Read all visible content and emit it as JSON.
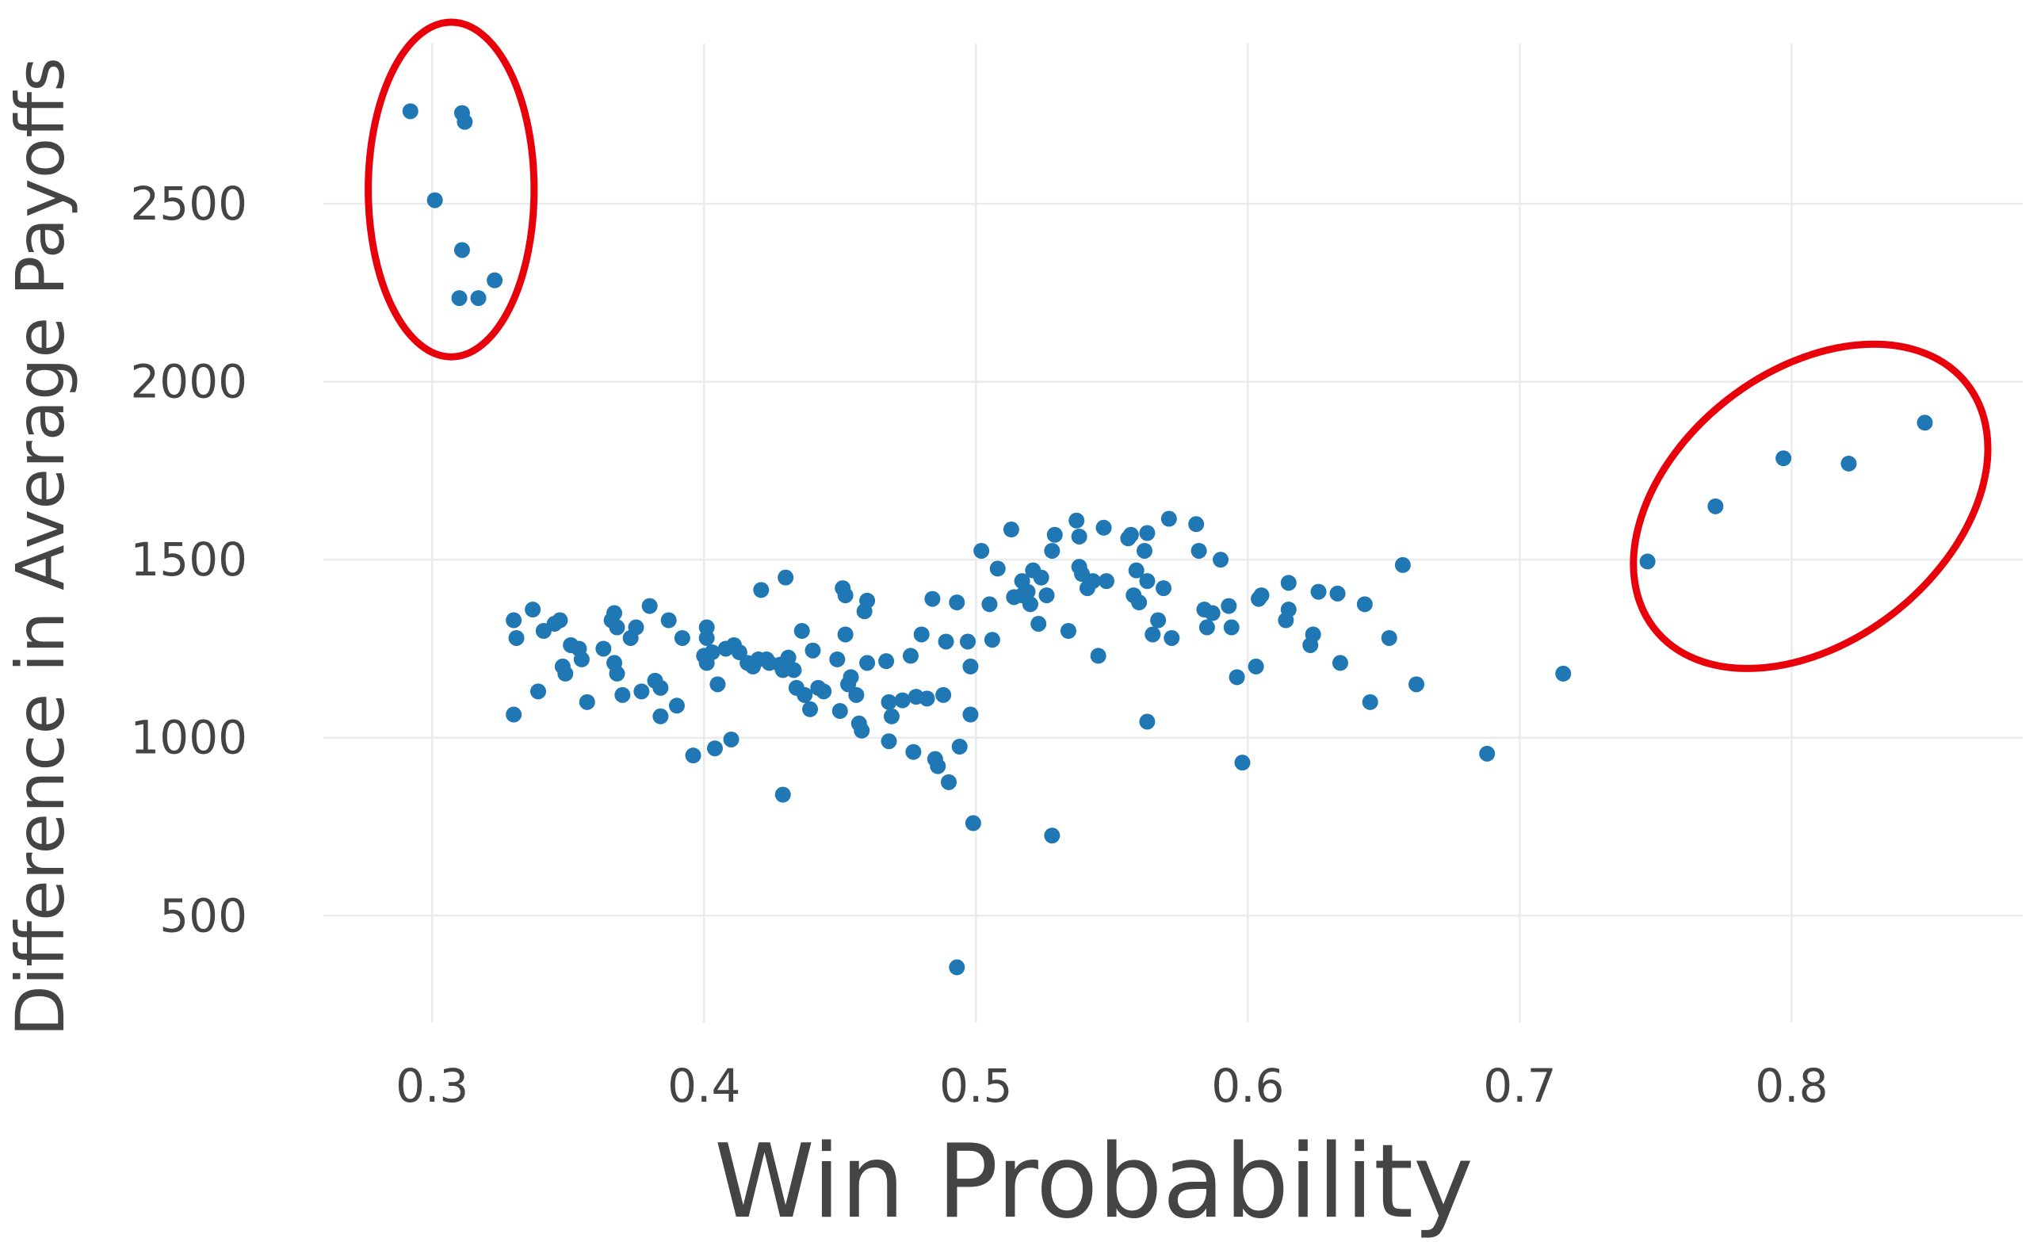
{
  "chart_data": {
    "type": "scatter",
    "title": "",
    "xlabel": "Win Probability",
    "ylabel": "Difference in Average Payoffs",
    "xlim": [
      0.26,
      0.885
    ],
    "ylim": [
      200,
      2950
    ],
    "x_ticks": [
      0.3,
      0.4,
      0.5,
      0.6,
      0.7,
      0.8
    ],
    "y_ticks": [
      500,
      1000,
      1500,
      2000,
      2500
    ],
    "x_tick_labels": [
      "0.3",
      "0.4",
      "0.5",
      "0.6",
      "0.7",
      "0.8"
    ],
    "y_tick_labels": [
      "500",
      "1000",
      "1500",
      "2000",
      "2500"
    ],
    "grid": true,
    "point_color": "#1f77b4",
    "annotation_color": "#e8000b",
    "annotations": [
      {
        "type": "ellipse",
        "cx": 0.307,
        "cy": 2540,
        "rx": 0.0305,
        "ry": 470
      },
      {
        "type": "ellipse",
        "cx": 0.807,
        "cy": 1650,
        "rx": 0.073,
        "ry": 380,
        "rotation": -38
      }
    ],
    "points": [
      [
        0.292,
        2760
      ],
      [
        0.311,
        2755
      ],
      [
        0.312,
        2730
      ],
      [
        0.301,
        2510
      ],
      [
        0.311,
        2370
      ],
      [
        0.323,
        2285
      ],
      [
        0.31,
        2235
      ],
      [
        0.317,
        2235
      ],
      [
        0.747,
        1495
      ],
      [
        0.772,
        1650
      ],
      [
        0.797,
        1785
      ],
      [
        0.821,
        1770
      ],
      [
        0.849,
        1885
      ],
      [
        0.33,
        1330
      ],
      [
        0.331,
        1280
      ],
      [
        0.33,
        1065
      ],
      [
        0.337,
        1360
      ],
      [
        0.339,
        1130
      ],
      [
        0.341,
        1300
      ],
      [
        0.345,
        1320
      ],
      [
        0.347,
        1330
      ],
      [
        0.348,
        1200
      ],
      [
        0.349,
        1180
      ],
      [
        0.351,
        1260
      ],
      [
        0.354,
        1250
      ],
      [
        0.355,
        1220
      ],
      [
        0.357,
        1100
      ],
      [
        0.363,
        1250
      ],
      [
        0.366,
        1330
      ],
      [
        0.367,
        1350
      ],
      [
        0.368,
        1310
      ],
      [
        0.367,
        1210
      ],
      [
        0.368,
        1180
      ],
      [
        0.37,
        1120
      ],
      [
        0.373,
        1280
      ],
      [
        0.375,
        1310
      ],
      [
        0.377,
        1130
      ],
      [
        0.38,
        1370
      ],
      [
        0.382,
        1160
      ],
      [
        0.384,
        1140
      ],
      [
        0.384,
        1060
      ],
      [
        0.387,
        1330
      ],
      [
        0.39,
        1090
      ],
      [
        0.392,
        1280
      ],
      [
        0.396,
        950
      ],
      [
        0.4,
        1230
      ],
      [
        0.401,
        1210
      ],
      [
        0.401,
        1310
      ],
      [
        0.401,
        1280
      ],
      [
        0.403,
        1240
      ],
      [
        0.404,
        970
      ],
      [
        0.405,
        1150
      ],
      [
        0.408,
        1250
      ],
      [
        0.41,
        995
      ],
      [
        0.411,
        1260
      ],
      [
        0.413,
        1240
      ],
      [
        0.416,
        1210
      ],
      [
        0.418,
        1200
      ],
      [
        0.42,
        1220
      ],
      [
        0.421,
        1415
      ],
      [
        0.423,
        1220
      ],
      [
        0.424,
        1210
      ],
      [
        0.428,
        1205
      ],
      [
        0.429,
        1190
      ],
      [
        0.429,
        840
      ],
      [
        0.43,
        1450
      ],
      [
        0.431,
        1225
      ],
      [
        0.433,
        1190
      ],
      [
        0.434,
        1140
      ],
      [
        0.436,
        1300
      ],
      [
        0.437,
        1120
      ],
      [
        0.439,
        1080
      ],
      [
        0.44,
        1245
      ],
      [
        0.442,
        1140
      ],
      [
        0.444,
        1130
      ],
      [
        0.449,
        1220
      ],
      [
        0.45,
        1075
      ],
      [
        0.451,
        1420
      ],
      [
        0.452,
        1400
      ],
      [
        0.452,
        1290
      ],
      [
        0.453,
        1150
      ],
      [
        0.454,
        1170
      ],
      [
        0.456,
        1120
      ],
      [
        0.457,
        1040
      ],
      [
        0.458,
        1020
      ],
      [
        0.459,
        1355
      ],
      [
        0.46,
        1385
      ],
      [
        0.46,
        1210
      ],
      [
        0.467,
        1215
      ],
      [
        0.468,
        1100
      ],
      [
        0.468,
        990
      ],
      [
        0.469,
        1060
      ],
      [
        0.473,
        1105
      ],
      [
        0.476,
        1230
      ],
      [
        0.477,
        960
      ],
      [
        0.478,
        1115
      ],
      [
        0.48,
        1290
      ],
      [
        0.482,
        1110
      ],
      [
        0.484,
        1390
      ],
      [
        0.485,
        940
      ],
      [
        0.486,
        920
      ],
      [
        0.488,
        1120
      ],
      [
        0.489,
        1270
      ],
      [
        0.49,
        875
      ],
      [
        0.493,
        1380
      ],
      [
        0.493,
        355
      ],
      [
        0.494,
        975
      ],
      [
        0.497,
        1270
      ],
      [
        0.498,
        1200
      ],
      [
        0.498,
        1065
      ],
      [
        0.499,
        760
      ],
      [
        0.502,
        1525
      ],
      [
        0.505,
        1375
      ],
      [
        0.506,
        1275
      ],
      [
        0.508,
        1475
      ],
      [
        0.513,
        1585
      ],
      [
        0.514,
        1395
      ],
      [
        0.517,
        1440
      ],
      [
        0.517,
        1400
      ],
      [
        0.519,
        1410
      ],
      [
        0.52,
        1375
      ],
      [
        0.521,
        1470
      ],
      [
        0.523,
        1320
      ],
      [
        0.524,
        1450
      ],
      [
        0.526,
        1400
      ],
      [
        0.528,
        1525
      ],
      [
        0.529,
        1570
      ],
      [
        0.528,
        725
      ],
      [
        0.534,
        1300
      ],
      [
        0.537,
        1610
      ],
      [
        0.538,
        1565
      ],
      [
        0.538,
        1480
      ],
      [
        0.539,
        1460
      ],
      [
        0.541,
        1420
      ],
      [
        0.543,
        1440
      ],
      [
        0.545,
        1230
      ],
      [
        0.547,
        1590
      ],
      [
        0.548,
        1440
      ],
      [
        0.556,
        1560
      ],
      [
        0.557,
        1570
      ],
      [
        0.558,
        1400
      ],
      [
        0.559,
        1470
      ],
      [
        0.56,
        1380
      ],
      [
        0.562,
        1525
      ],
      [
        0.563,
        1575
      ],
      [
        0.563,
        1440
      ],
      [
        0.563,
        1045
      ],
      [
        0.565,
        1290
      ],
      [
        0.567,
        1330
      ],
      [
        0.569,
        1420
      ],
      [
        0.571,
        1615
      ],
      [
        0.572,
        1280
      ],
      [
        0.581,
        1600
      ],
      [
        0.582,
        1525
      ],
      [
        0.584,
        1360
      ],
      [
        0.585,
        1310
      ],
      [
        0.587,
        1350
      ],
      [
        0.59,
        1500
      ],
      [
        0.593,
        1370
      ],
      [
        0.594,
        1310
      ],
      [
        0.596,
        1170
      ],
      [
        0.598,
        930
      ],
      [
        0.603,
        1200
      ],
      [
        0.604,
        1390
      ],
      [
        0.605,
        1400
      ],
      [
        0.614,
        1330
      ],
      [
        0.615,
        1435
      ],
      [
        0.615,
        1360
      ],
      [
        0.623,
        1260
      ],
      [
        0.624,
        1290
      ],
      [
        0.626,
        1410
      ],
      [
        0.633,
        1405
      ],
      [
        0.634,
        1210
      ],
      [
        0.643,
        1375
      ],
      [
        0.645,
        1100
      ],
      [
        0.652,
        1280
      ],
      [
        0.657,
        1485
      ],
      [
        0.662,
        1150
      ],
      [
        0.688,
        955
      ],
      [
        0.716,
        1180
      ]
    ]
  }
}
